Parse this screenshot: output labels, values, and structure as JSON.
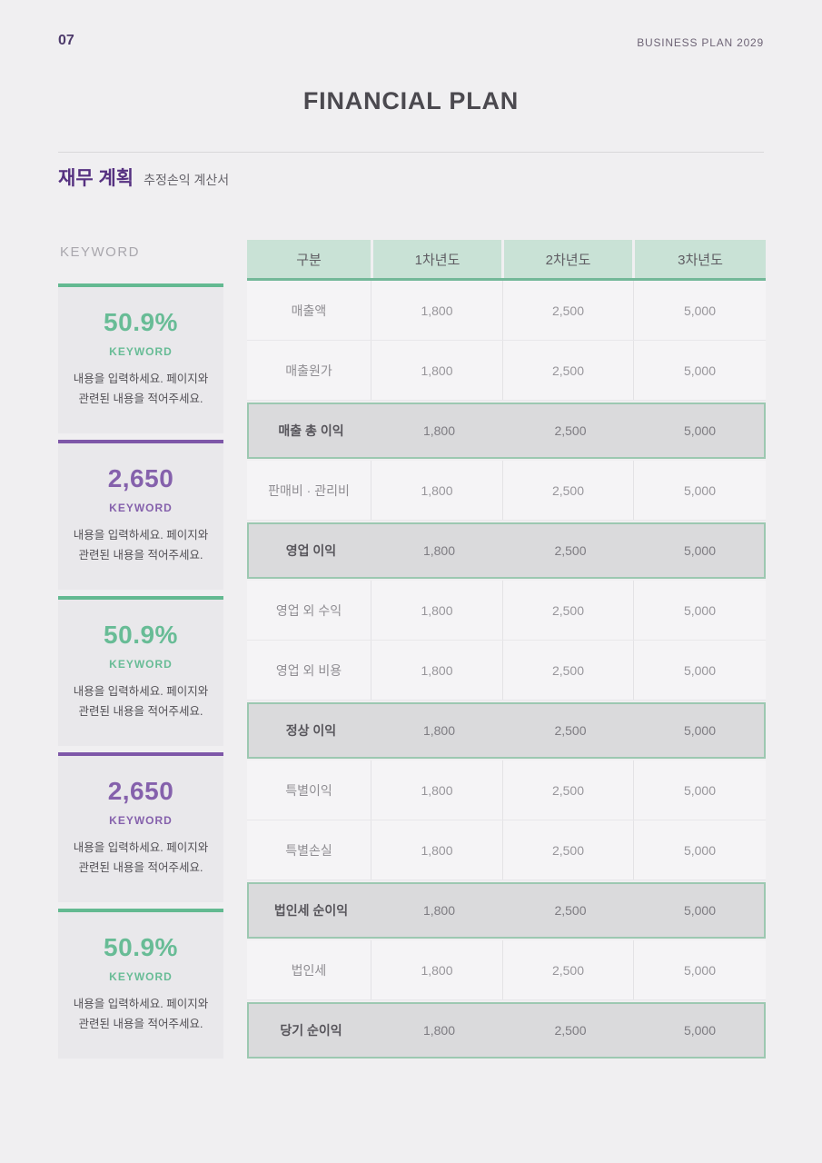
{
  "page": {
    "page_number": "07",
    "header_right": "BUSINESS PLAN 2029",
    "title": "FINANCIAL PLAN"
  },
  "section": {
    "heading": "재무 계획",
    "subheading": "추정손익 계산서"
  },
  "sidebar": {
    "title": "KEYWORD",
    "cards": [
      {
        "value": "50.9%",
        "label": "KEYWORD",
        "accent": "green",
        "description_line1": "내용을 입력하세요. 페이지와",
        "description_line2": "관련된 내용을 적어주세요."
      },
      {
        "value": "2,650",
        "label": "KEYWORD",
        "accent": "purple",
        "description_line1": "내용을 입력하세요. 페이지와",
        "description_line2": "관련된 내용을 적어주세요."
      },
      {
        "value": "50.9%",
        "label": "KEYWORD",
        "accent": "green",
        "description_line1": "내용을 입력하세요. 페이지와",
        "description_line2": "관련된 내용을 적어주세요."
      },
      {
        "value": "2,650",
        "label": "KEYWORD",
        "accent": "purple",
        "description_line1": "내용을 입력하세요. 페이지와",
        "description_line2": "관련된 내용을 적어주세요."
      },
      {
        "value": "50.9%",
        "label": "KEYWORD",
        "accent": "green",
        "description_line1": "내용을 입력하세요. 페이지와",
        "description_line2": "관련된 내용을 적어주세요."
      }
    ]
  },
  "table": {
    "columns": [
      "구분",
      "1차년도",
      "2차년도",
      "3차년도"
    ],
    "rows": [
      {
        "label": "매출액",
        "values": [
          "1,800",
          "2,500",
          "5,000"
        ],
        "highlighted": false
      },
      {
        "label": "매출원가",
        "values": [
          "1,800",
          "2,500",
          "5,000"
        ],
        "highlighted": false
      },
      {
        "label": "매출 총 이익",
        "values": [
          "1,800",
          "2,500",
          "5,000"
        ],
        "highlighted": true
      },
      {
        "label": "판매비 · 관리비",
        "values": [
          "1,800",
          "2,500",
          "5,000"
        ],
        "highlighted": false
      },
      {
        "label": "영업 이익",
        "values": [
          "1,800",
          "2,500",
          "5,000"
        ],
        "highlighted": true
      },
      {
        "label": "영업 외 수익",
        "values": [
          "1,800",
          "2,500",
          "5,000"
        ],
        "highlighted": false
      },
      {
        "label": "영업 외 비용",
        "values": [
          "1,800",
          "2,500",
          "5,000"
        ],
        "highlighted": false
      },
      {
        "label": "정상 이익",
        "values": [
          "1,800",
          "2,500",
          "5,000"
        ],
        "highlighted": true
      },
      {
        "label": "특별이익",
        "values": [
          "1,800",
          "2,500",
          "5,000"
        ],
        "highlighted": false
      },
      {
        "label": "특별손실",
        "values": [
          "1,800",
          "2,500",
          "5,000"
        ],
        "highlighted": false
      },
      {
        "label": "법인세 순이익",
        "values": [
          "1,800",
          "2,500",
          "5,000"
        ],
        "highlighted": true
      },
      {
        "label": "법인세",
        "values": [
          "1,800",
          "2,500",
          "5,000"
        ],
        "highlighted": false
      },
      {
        "label": "당기 순이익",
        "values": [
          "1,800",
          "2,500",
          "5,000"
        ],
        "highlighted": true
      }
    ]
  },
  "colors": {
    "accent_green": "#68bc96",
    "accent_purple": "#8561ac",
    "heading_purple": "#563181",
    "header_cell_bg": "#c9e2d6",
    "header_underline": "#73b899",
    "highlight_row_bg": "#dadadc",
    "highlight_row_border": "#9cc8b1",
    "page_bg": "#f0eff1",
    "card_bg": "#e9e8eb"
  }
}
